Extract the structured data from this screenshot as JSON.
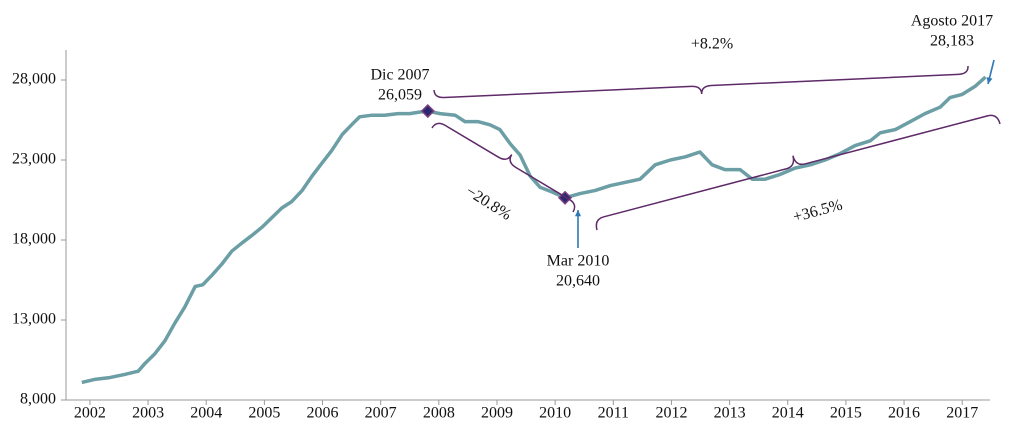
{
  "chart_data": {
    "type": "line",
    "x": [
      2001.86,
      2002.1,
      2002.34,
      2002.6,
      2002.83,
      2002.95,
      2003.12,
      2003.29,
      2003.46,
      2003.63,
      2003.81,
      2003.94,
      2004.1,
      2004.27,
      2004.44,
      2004.61,
      2004.79,
      2004.96,
      2005.13,
      2005.3,
      2005.47,
      2005.65,
      2005.82,
      2005.99,
      2006.16,
      2006.34,
      2006.5,
      2006.64,
      2006.85,
      2007.07,
      2007.3,
      2007.5,
      2007.68,
      2007.81,
      2008.02,
      2008.28,
      2008.45,
      2008.67,
      2008.88,
      2009.05,
      2009.23,
      2009.4,
      2009.57,
      2009.74,
      2009.95,
      2010.17,
      2010.43,
      2010.69,
      2010.95,
      2011.2,
      2011.46,
      2011.72,
      2011.98,
      2012.24,
      2012.49,
      2012.7,
      2012.92,
      2013.18,
      2013.39,
      2013.61,
      2013.87,
      2014.13,
      2014.39,
      2014.64,
      2014.9,
      2015.16,
      2015.42,
      2015.59,
      2015.85,
      2016.11,
      2016.36,
      2016.62,
      2016.79,
      2017.0,
      2017.22,
      2017.4
    ],
    "values": [
      9100,
      9300,
      9400,
      9600,
      9800,
      10300,
      10900,
      11700,
      12800,
      13800,
      15100,
      15200,
      15800,
      16500,
      17300,
      17800,
      18300,
      18800,
      19400,
      20000,
      20400,
      21100,
      22000,
      22800,
      23600,
      24600,
      25200,
      25700,
      25800,
      25800,
      25900,
      25900,
      26000,
      26059,
      25900,
      25800,
      25400,
      25400,
      25200,
      24900,
      24000,
      23300,
      22000,
      21300,
      21000,
      20640,
      20900,
      21100,
      21400,
      21600,
      21800,
      22700,
      23000,
      23200,
      23500,
      22700,
      22400,
      22400,
      21800,
      21800,
      22100,
      22500,
      22700,
      23000,
      23400,
      23900,
      24200,
      24700,
      24900,
      25400,
      25900,
      26300,
      26900,
      27100,
      27600,
      28183
    ],
    "color": "#6b9ea5",
    "marker_color": "#2a2870",
    "xlim": [
      2001.52,
      2017.65
    ],
    "xticks": [
      2002,
      2003,
      2004,
      2005,
      2006,
      2007,
      2008,
      2009,
      2010,
      2011,
      2012,
      2013,
      2014,
      2015,
      2016,
      2017
    ],
    "ylim": [
      8000,
      31000
    ],
    "yticks": [
      {
        "value": 8000,
        "label": "8,000"
      },
      {
        "value": 13000,
        "label": "13,000"
      },
      {
        "value": 18000,
        "label": "18,000"
      },
      {
        "value": 23000,
        "label": "23,000"
      },
      {
        "value": 28000,
        "label": "28,000"
      }
    ],
    "annotations": [
      {
        "lines": [
          "Dic 2007",
          "26,059"
        ]
      },
      {
        "lines": [
          "Mar 2010",
          "20,640"
        ]
      },
      {
        "lines": [
          "Agosto 2017",
          "28,183"
        ]
      },
      {
        "lines": [
          "+8.2%"
        ]
      },
      {
        "lines": [
          "−20.8%"
        ]
      },
      {
        "lines": [
          "+36.5%"
        ]
      }
    ]
  }
}
